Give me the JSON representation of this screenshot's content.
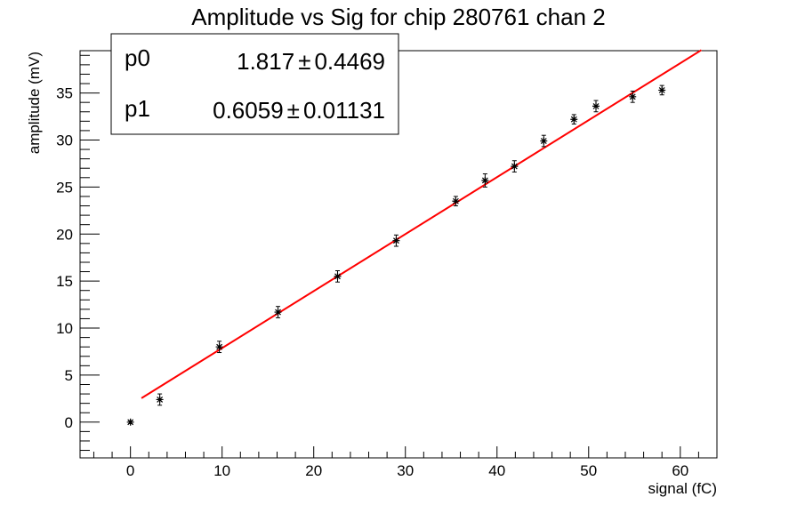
{
  "chart_data": {
    "type": "scatter",
    "title": "Amplitude vs Sig for chip 280761 chan 2",
    "xlabel": "signal (fC)",
    "ylabel": "amplitude (mV)",
    "xlim": [
      -5.5,
      64
    ],
    "ylim": [
      -3.8,
      39.5
    ],
    "x_ticks": [
      0,
      10,
      20,
      30,
      40,
      50,
      60
    ],
    "y_ticks": [
      0,
      5,
      10,
      15,
      20,
      25,
      30,
      35
    ],
    "x_tick_labels": [
      "0",
      "10",
      "20",
      "30",
      "40",
      "50",
      "60"
    ],
    "y_tick_labels": [
      "0",
      "5",
      "10",
      "15",
      "20",
      "25",
      "30",
      "35"
    ],
    "x_minor_step": 2,
    "y_minor_step": 1,
    "grid": false,
    "points": [
      {
        "x": 0.0,
        "y": 0.0,
        "err": 0.15
      },
      {
        "x": 3.2,
        "y": 2.4,
        "err": 0.6
      },
      {
        "x": 9.7,
        "y": 8.0,
        "err": 0.6
      },
      {
        "x": 16.1,
        "y": 11.7,
        "err": 0.6
      },
      {
        "x": 22.6,
        "y": 15.5,
        "err": 0.6
      },
      {
        "x": 29.0,
        "y": 19.3,
        "err": 0.6
      },
      {
        "x": 35.5,
        "y": 23.5,
        "err": 0.5
      },
      {
        "x": 38.7,
        "y": 25.7,
        "err": 0.7
      },
      {
        "x": 41.9,
        "y": 27.2,
        "err": 0.6
      },
      {
        "x": 45.1,
        "y": 29.9,
        "err": 0.6
      },
      {
        "x": 48.4,
        "y": 32.2,
        "err": 0.5
      },
      {
        "x": 50.8,
        "y": 33.6,
        "err": 0.6
      },
      {
        "x": 54.8,
        "y": 34.6,
        "err": 0.6
      },
      {
        "x": 58.0,
        "y": 35.3,
        "err": 0.5
      }
    ],
    "fit": {
      "x_range": [
        1.2,
        62.3
      ],
      "p0": 1.817,
      "p1": 0.6059,
      "color": "#ff0000"
    },
    "stats_box": {
      "rows": [
        {
          "name": "p0",
          "value": "1.817",
          "error": "0.4469"
        },
        {
          "name": "p1",
          "value": "0.6059",
          "error": "0.01131"
        }
      ],
      "pm_symbol": "±"
    },
    "marker_color": "#000000"
  }
}
